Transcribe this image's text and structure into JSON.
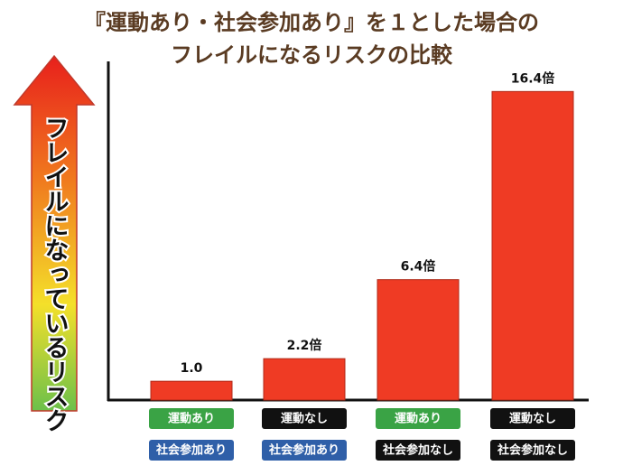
{
  "chart_data": {
    "type": "bar",
    "title": "『運動あり・社会参加あり』を１とした場合の",
    "subtitle": "フレイルになるリスクの比較",
    "arrow_label": "フレイルになっているリスク",
    "categories": [
      "運動あり",
      "運動なし",
      "運動あり",
      "運動なし"
    ],
    "category_colors": [
      "#3aa345",
      "#111111",
      "#3aa345",
      "#111111"
    ],
    "subcategories": [
      "社会参加あり",
      "社会参加あり",
      "社会参加なし",
      "社会参加なし"
    ],
    "subcategory_colors": [
      "#2f5fa8",
      "#2f5fa8",
      "#111111",
      "#111111"
    ],
    "values": [
      1.0,
      2.2,
      6.4,
      16.4
    ],
    "value_labels": [
      "1.0",
      "2.2倍",
      "6.4倍",
      "16.4倍"
    ],
    "color": "#ef3b24",
    "ylim": [
      0,
      18
    ]
  }
}
